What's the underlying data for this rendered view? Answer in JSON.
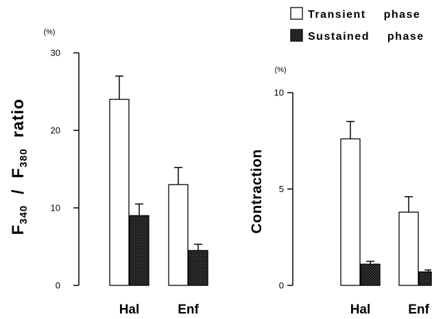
{
  "chart_data": [
    {
      "type": "bar",
      "ylabel": [
        "F",
        "340",
        " / F",
        "380",
        " ratio"
      ],
      "unit": "(%)",
      "categories": [
        "Hal",
        "Enf"
      ],
      "ylim": [
        0,
        30
      ],
      "yticks": [
        0,
        10,
        20,
        30
      ],
      "grid": false,
      "legend_position": "top-right",
      "series": [
        {
          "name": "Transient phase",
          "color": "#ffffff",
          "values": [
            24,
            13
          ],
          "errors": [
            3,
            2.2
          ]
        },
        {
          "name": "Sustained phase",
          "color": "#1c1c1c",
          "values": [
            9,
            4.5
          ],
          "errors": [
            1.5,
            0.8
          ]
        }
      ]
    },
    {
      "type": "bar",
      "ylabel": "Contraction",
      "unit": "(%)",
      "categories": [
        "Hal",
        "Enf"
      ],
      "ylim": [
        0,
        10
      ],
      "yticks": [
        0,
        5,
        10
      ],
      "grid": false,
      "series": [
        {
          "name": "Transient phase",
          "color": "#ffffff",
          "values": [
            7.6,
            3.8
          ],
          "errors": [
            0.9,
            0.8
          ]
        },
        {
          "name": "Sustained phase",
          "color": "#1c1c1c",
          "values": [
            1.1,
            0.7
          ],
          "errors": [
            0.15,
            0.1
          ]
        }
      ]
    }
  ]
}
